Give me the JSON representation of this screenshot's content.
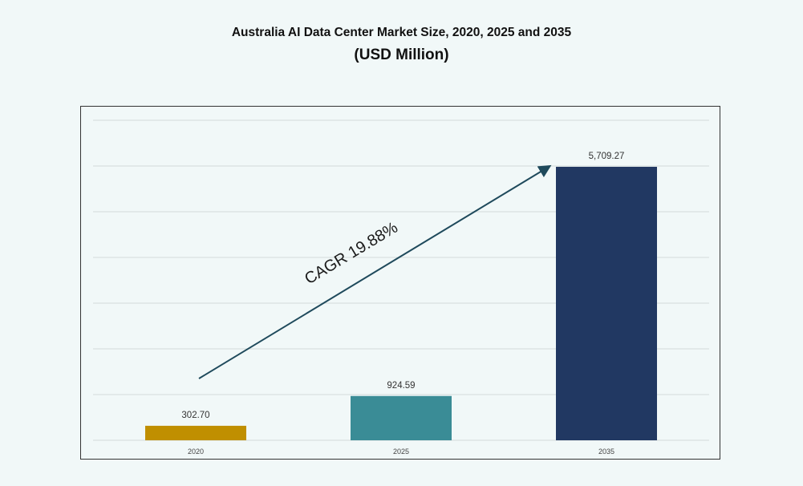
{
  "chart_data": {
    "type": "bar",
    "title": "Australia AI Data Center Market Size, 2020, 2025 and 2035",
    "subtitle": "(USD Million)",
    "categories": [
      "2020",
      "2025",
      "2035"
    ],
    "values": [
      302.7,
      924.59,
      5709.27
    ],
    "data_labels": [
      "302.70",
      "924.59",
      "5,709.27"
    ],
    "colors": [
      "#c08f00",
      "#3a8c96",
      "#213862"
    ],
    "annotation": "CAGR 19.88%",
    "annotation_color": "#1f4a5c",
    "grid": true,
    "legend": "none"
  }
}
